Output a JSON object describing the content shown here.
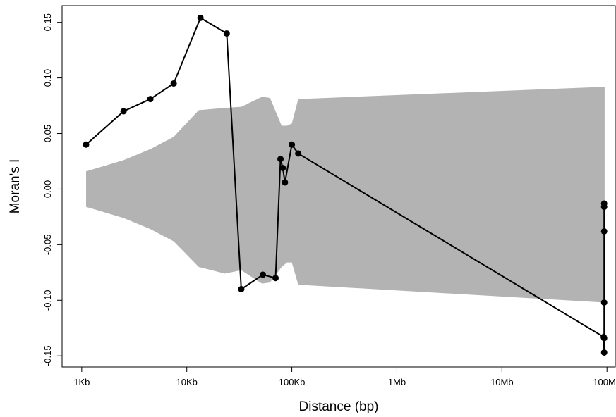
{
  "chart_data": {
    "type": "line",
    "title": "",
    "xlabel": "Distance (bp)",
    "ylabel": "Moran's I",
    "x_scale": "log",
    "x_ticks": [
      {
        "value": 1000,
        "label": "1Kb"
      },
      {
        "value": 10000,
        "label": "10Kb"
      },
      {
        "value": 100000,
        "label": "100Kb"
      },
      {
        "value": 1000000,
        "label": "1Mb"
      },
      {
        "value": 10000000,
        "label": "10Mb"
      },
      {
        "value": 100000000,
        "label": "100Mb"
      }
    ],
    "y_ticks": [
      {
        "value": -0.15,
        "label": "-0.15"
      },
      {
        "value": -0.1,
        "label": "-0.10"
      },
      {
        "value": -0.05,
        "label": "-0.05"
      },
      {
        "value": 0.0,
        "label": "0.00"
      },
      {
        "value": 0.05,
        "label": "0.05"
      },
      {
        "value": 0.1,
        "label": "0.10"
      },
      {
        "value": 0.15,
        "label": "0.15"
      }
    ],
    "xlim": [
      650,
      120000000
    ],
    "ylim": [
      -0.16,
      0.165
    ],
    "reference_line_y": 0,
    "colors": {
      "envelope": "#b3b3b3",
      "line": "#000000",
      "reference": "#555555"
    },
    "envelope": {
      "x": [
        1100,
        2500,
        4500,
        7500,
        13000,
        23000,
        33000,
        52000,
        62000,
        80000,
        90000,
        100000,
        115000,
        95000000
      ],
      "upper": [
        0.016,
        0.026,
        0.036,
        0.047,
        0.071,
        0.073,
        0.074,
        0.083,
        0.082,
        0.057,
        0.057,
        0.059,
        0.081,
        0.092
      ],
      "lower": [
        -0.016,
        -0.026,
        -0.036,
        -0.047,
        -0.07,
        -0.076,
        -0.073,
        -0.085,
        -0.084,
        -0.07,
        -0.066,
        -0.066,
        -0.086,
        -0.102
      ]
    },
    "series": [
      {
        "x": [
          1100,
          2500,
          4500,
          7500,
          13500,
          24000,
          33000,
          53000,
          70000,
          78000,
          82000,
          86000,
          100000,
          115000,
          93000000,
          94000000,
          94000000,
          94000000,
          94000000,
          94000000,
          94000000
        ],
        "y": [
          0.04,
          0.07,
          0.081,
          0.095,
          0.154,
          0.14,
          -0.09,
          -0.077,
          -0.08,
          0.027,
          0.019,
          0.006,
          0.04,
          0.032,
          -0.133,
          -0.147,
          -0.134,
          -0.102,
          -0.038,
          -0.016,
          -0.013
        ]
      }
    ]
  }
}
